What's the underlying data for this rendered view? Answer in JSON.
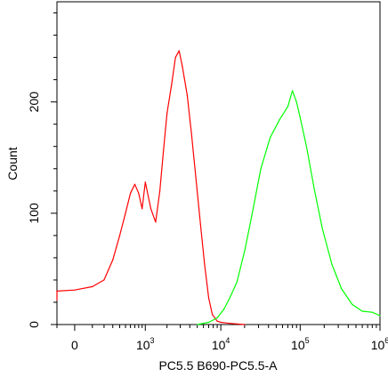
{
  "chart_data": {
    "type": "line",
    "title": "",
    "xlabel": "PC5.5 B690-PC5.5-A",
    "ylabel": "Count",
    "x_scale": "biexponential (logicle)",
    "x_tick_labels": [
      {
        "value": 0,
        "text": "0"
      },
      {
        "value": 1000,
        "base": "10",
        "exp": "3"
      },
      {
        "value": 10000,
        "base": "10",
        "exp": "4"
      },
      {
        "value": 100000,
        "base": "10",
        "exp": "5"
      },
      {
        "value": 1000000,
        "base": "10",
        "exp": "6"
      }
    ],
    "y_ticks": [
      0,
      100,
      200
    ],
    "ylim": [
      0,
      290
    ],
    "grid": false,
    "legend": "none",
    "series": [
      {
        "color": "#ff0000",
        "points": [
          [
            -400,
            22
          ],
          [
            -250,
            26
          ],
          [
            -100,
            30
          ],
          [
            0,
            31
          ],
          [
            100,
            34
          ],
          [
            200,
            40
          ],
          [
            300,
            58
          ],
          [
            400,
            80
          ],
          [
            500,
            100
          ],
          [
            600,
            118
          ],
          [
            700,
            126
          ],
          [
            800,
            118
          ],
          [
            900,
            104
          ],
          [
            1000,
            128
          ],
          [
            1200,
            104
          ],
          [
            1400,
            92
          ],
          [
            1600,
            120
          ],
          [
            1800,
            158
          ],
          [
            2000,
            190
          ],
          [
            2300,
            215
          ],
          [
            2600,
            240
          ],
          [
            2900,
            246
          ],
          [
            3200,
            232
          ],
          [
            3700,
            206
          ],
          [
            4200,
            172
          ],
          [
            4800,
            132
          ],
          [
            5500,
            90
          ],
          [
            6200,
            54
          ],
          [
            7000,
            24
          ],
          [
            7800,
            9
          ],
          [
            9000,
            3
          ],
          [
            10000,
            2
          ],
          [
            13000,
            1
          ],
          [
            20000,
            0
          ]
        ]
      },
      {
        "color": "#00ff00",
        "points": [
          [
            5000,
            0
          ],
          [
            7000,
            2
          ],
          [
            9000,
            6
          ],
          [
            11000,
            14
          ],
          [
            13000,
            24
          ],
          [
            16000,
            38
          ],
          [
            20000,
            66
          ],
          [
            25000,
            100
          ],
          [
            32000,
            140
          ],
          [
            42000,
            168
          ],
          [
            55000,
            184
          ],
          [
            70000,
            196
          ],
          [
            80000,
            210
          ],
          [
            90000,
            200
          ],
          [
            100000,
            186
          ],
          [
            120000,
            160
          ],
          [
            150000,
            122
          ],
          [
            190000,
            86
          ],
          [
            250000,
            54
          ],
          [
            330000,
            32
          ],
          [
            450000,
            18
          ],
          [
            600000,
            12
          ],
          [
            800000,
            11
          ],
          [
            1000000,
            8
          ]
        ]
      }
    ]
  }
}
